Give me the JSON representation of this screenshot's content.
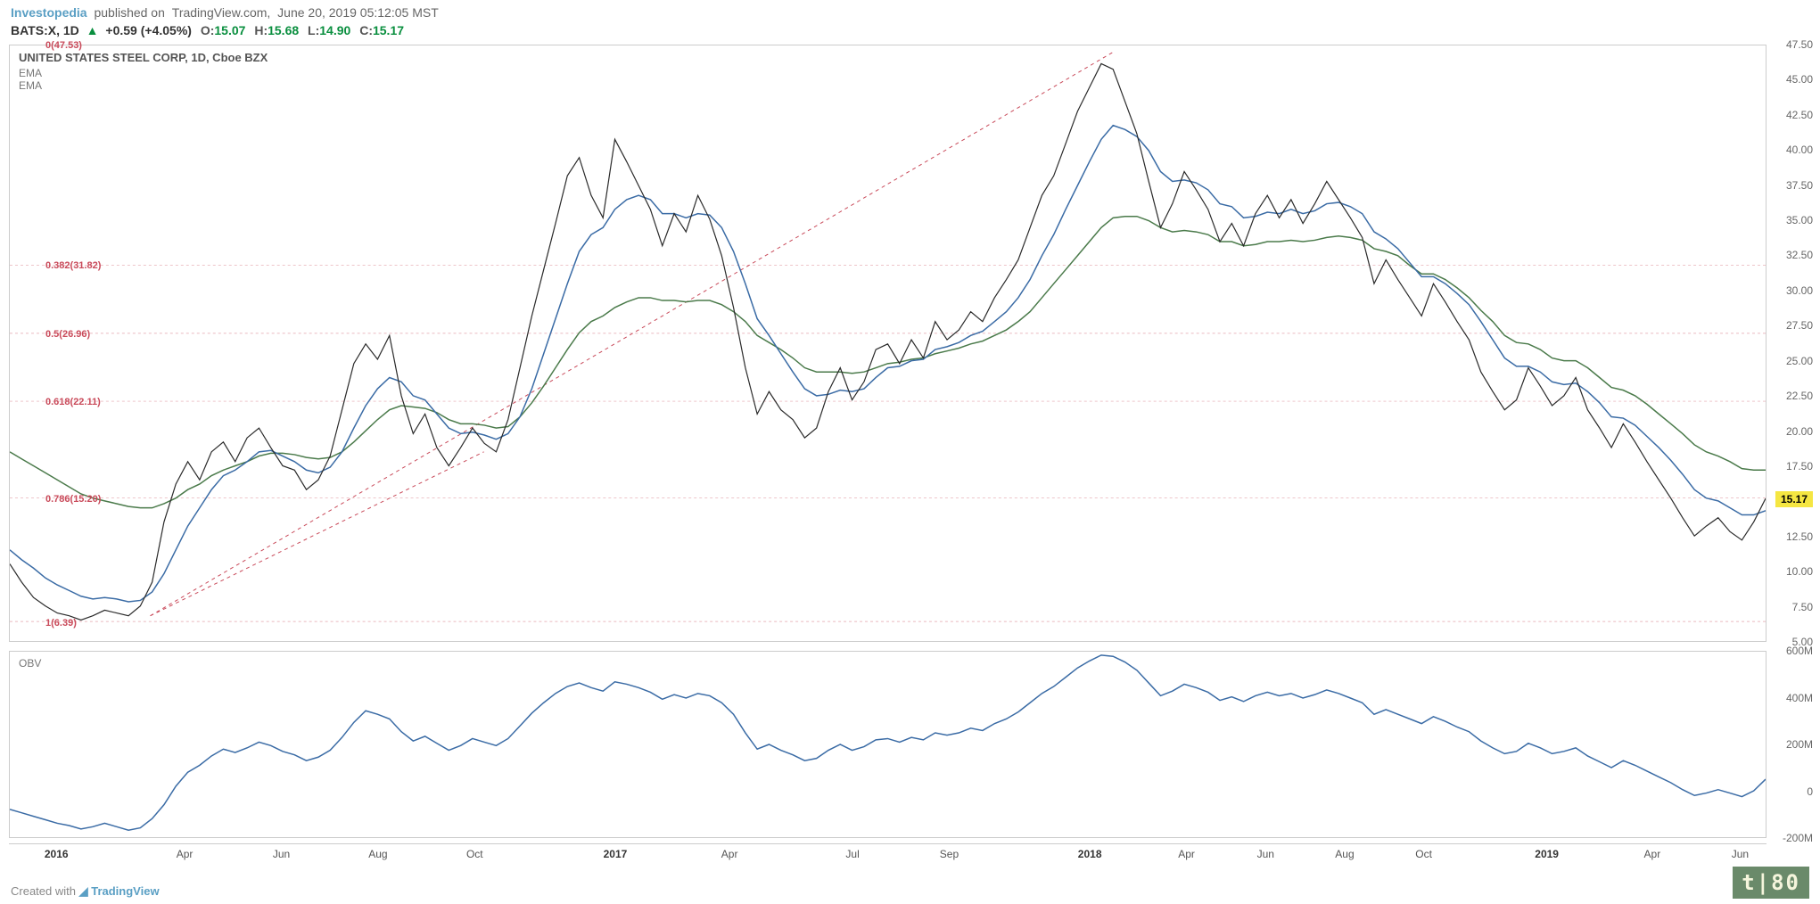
{
  "header": {
    "brand": "Investopedia",
    "published_prefix": "published on",
    "site": "TradingView.com,",
    "date": "June 20, 2019 05:12:05 MST"
  },
  "ohlc": {
    "symbol": "BATS:X",
    "timeframe": "1D",
    "arrow": "▲",
    "change": "+0.59",
    "pct": "(+4.05%)",
    "o_label": "O:",
    "o": "15.07",
    "h_label": "H:",
    "h": "15.68",
    "l_label": "L:",
    "l": "14.90",
    "c_label": "C:",
    "c": "15.17"
  },
  "main_chart": {
    "title": "UNITED STATES STEEL CORP, 1D, Cboe BZX",
    "ema1": "EMA",
    "ema2": "EMA",
    "ylim": [
      5.0,
      47.5
    ],
    "yticks": [
      "47.50",
      "45.00",
      "42.50",
      "40.00",
      "37.50",
      "35.00",
      "32.50",
      "30.00",
      "27.50",
      "25.00",
      "22.50",
      "20.00",
      "17.50",
      "15.00",
      "12.50",
      "10.00",
      "7.50",
      "5.00"
    ],
    "ytick_vals": [
      47.5,
      45,
      42.5,
      40,
      37.5,
      35,
      32.5,
      30,
      27.5,
      25,
      22.5,
      20,
      17.5,
      15,
      12.5,
      10,
      7.5,
      5
    ],
    "current_price": "15.17",
    "current_price_val": 15.17,
    "fib_levels": [
      {
        "label": "0(47.53)",
        "val": 47.53
      },
      {
        "label": "0.382(31.82)",
        "val": 31.82
      },
      {
        "label": "0.5(26.96)",
        "val": 26.96
      },
      {
        "label": "0.618(22.11)",
        "val": 22.11
      },
      {
        "label": "0.786(15.20)",
        "val": 15.2
      },
      {
        "label": "1(6.39)",
        "val": 6.39
      }
    ],
    "price": [
      10.5,
      9.2,
      8.1,
      7.5,
      7.0,
      6.8,
      6.5,
      6.8,
      7.2,
      7.0,
      6.8,
      7.5,
      9.2,
      13.5,
      16.2,
      17.8,
      16.5,
      18.5,
      19.2,
      17.8,
      19.5,
      20.2,
      18.8,
      17.5,
      17.2,
      15.8,
      16.5,
      18.2,
      21.5,
      24.8,
      26.2,
      25.1,
      26.8,
      22.5,
      19.8,
      21.2,
      18.8,
      17.5,
      18.8,
      20.2,
      19.1,
      18.5,
      20.8,
      24.5,
      28.2,
      31.5,
      34.8,
      38.2,
      39.5,
      36.8,
      35.2,
      40.8,
      39.2,
      37.5,
      35.8,
      33.2,
      35.5,
      34.2,
      36.8,
      35.1,
      32.5,
      28.8,
      24.5,
      21.2,
      22.8,
      21.5,
      20.8,
      19.5,
      20.2,
      22.8,
      24.5,
      22.2,
      23.5,
      25.8,
      26.2,
      24.8,
      26.5,
      25.2,
      27.8,
      26.5,
      27.2,
      28.5,
      27.8,
      29.5,
      30.8,
      32.2,
      34.5,
      36.8,
      38.2,
      40.5,
      42.8,
      44.5,
      46.2,
      45.8,
      43.5,
      41.2,
      37.8,
      34.5,
      36.2,
      38.5,
      37.2,
      35.8,
      33.5,
      34.8,
      33.2,
      35.5,
      36.8,
      35.2,
      36.5,
      34.8,
      36.2,
      37.8,
      36.5,
      35.2,
      33.8,
      30.5,
      32.2,
      30.8,
      29.5,
      28.2,
      30.5,
      29.2,
      27.8,
      26.5,
      24.2,
      22.8,
      21.5,
      22.2,
      24.5,
      23.2,
      21.8,
      22.5,
      23.8,
      21.5,
      20.2,
      18.8,
      20.5,
      19.2,
      17.8,
      16.5,
      15.2,
      13.8,
      12.5,
      13.2,
      13.8,
      12.8,
      12.2,
      13.5,
      15.17
    ],
    "ema_fast": [
      11.5,
      10.8,
      10.2,
      9.5,
      9.0,
      8.6,
      8.2,
      8.0,
      8.1,
      8.0,
      7.8,
      7.9,
      8.5,
      9.8,
      11.5,
      13.2,
      14.5,
      15.8,
      16.8,
      17.2,
      17.8,
      18.5,
      18.6,
      18.2,
      17.8,
      17.2,
      17.0,
      17.4,
      18.5,
      20.2,
      21.8,
      23.0,
      23.8,
      23.5,
      22.5,
      22.2,
      21.2,
      20.2,
      19.8,
      19.9,
      19.7,
      19.4,
      19.8,
      21.0,
      23.0,
      25.5,
      28.0,
      30.5,
      32.8,
      34.0,
      34.5,
      35.8,
      36.5,
      36.8,
      36.5,
      35.5,
      35.5,
      35.2,
      35.5,
      35.4,
      34.5,
      32.8,
      30.5,
      28.0,
      26.8,
      25.5,
      24.2,
      23.0,
      22.5,
      22.6,
      22.9,
      22.8,
      23.0,
      23.8,
      24.5,
      24.6,
      25.0,
      25.1,
      25.8,
      26.0,
      26.3,
      26.8,
      27.1,
      27.8,
      28.5,
      29.5,
      30.8,
      32.5,
      34.0,
      35.8,
      37.5,
      39.2,
      40.8,
      41.8,
      41.5,
      41.0,
      40.0,
      38.5,
      37.8,
      37.9,
      37.7,
      37.2,
      36.2,
      36.0,
      35.2,
      35.3,
      35.6,
      35.5,
      35.8,
      35.5,
      35.7,
      36.2,
      36.3,
      36.0,
      35.5,
      34.2,
      33.7,
      33.0,
      32.0,
      31.0,
      31.0,
      30.5,
      29.8,
      29.0,
      27.8,
      26.5,
      25.2,
      24.6,
      24.6,
      24.2,
      23.5,
      23.3,
      23.4,
      22.8,
      22.0,
      21.0,
      20.9,
      20.4,
      19.6,
      18.8,
      17.9,
      16.9,
      15.8,
      15.2,
      15.0,
      14.5,
      14.0,
      14.0,
      14.3
    ],
    "ema_slow": [
      18.5,
      18.0,
      17.5,
      17.0,
      16.5,
      16.0,
      15.5,
      15.2,
      15.0,
      14.8,
      14.6,
      14.5,
      14.5,
      14.8,
      15.2,
      15.8,
      16.2,
      16.8,
      17.2,
      17.5,
      17.8,
      18.2,
      18.4,
      18.4,
      18.3,
      18.1,
      18.0,
      18.1,
      18.5,
      19.2,
      20.0,
      20.8,
      21.5,
      21.8,
      21.7,
      21.6,
      21.3,
      20.8,
      20.5,
      20.5,
      20.4,
      20.2,
      20.3,
      21.0,
      22.0,
      23.2,
      24.5,
      25.8,
      27.0,
      27.8,
      28.2,
      28.8,
      29.2,
      29.5,
      29.5,
      29.3,
      29.3,
      29.2,
      29.3,
      29.3,
      29.0,
      28.5,
      27.8,
      26.8,
      26.3,
      25.8,
      25.2,
      24.5,
      24.2,
      24.2,
      24.2,
      24.1,
      24.2,
      24.5,
      24.8,
      24.9,
      25.1,
      25.2,
      25.5,
      25.7,
      25.9,
      26.2,
      26.4,
      26.8,
      27.2,
      27.8,
      28.5,
      29.5,
      30.5,
      31.5,
      32.5,
      33.5,
      34.5,
      35.2,
      35.3,
      35.3,
      35.0,
      34.5,
      34.2,
      34.3,
      34.2,
      34.0,
      33.5,
      33.5,
      33.2,
      33.3,
      33.5,
      33.5,
      33.6,
      33.5,
      33.6,
      33.8,
      33.9,
      33.8,
      33.6,
      33.0,
      32.8,
      32.5,
      31.8,
      31.2,
      31.2,
      30.8,
      30.2,
      29.5,
      28.6,
      27.8,
      26.8,
      26.3,
      26.2,
      25.8,
      25.2,
      25.0,
      25.0,
      24.5,
      23.8,
      23.1,
      22.9,
      22.5,
      21.9,
      21.2,
      20.5,
      19.8,
      19.0,
      18.5,
      18.2,
      17.8,
      17.3,
      17.2,
      17.2
    ]
  },
  "obv_chart": {
    "label": "OBV",
    "ylim": [
      -200,
      600
    ],
    "yticks": [
      "600M",
      "400M",
      "200M",
      "0",
      "-200M"
    ],
    "ytick_vals": [
      600,
      400,
      200,
      0,
      -200
    ],
    "data": [
      -80,
      -95,
      -110,
      -125,
      -140,
      -150,
      -165,
      -155,
      -140,
      -155,
      -170,
      -160,
      -120,
      -60,
      20,
      80,
      110,
      150,
      180,
      165,
      185,
      210,
      195,
      170,
      155,
      130,
      145,
      175,
      230,
      295,
      345,
      330,
      310,
      255,
      215,
      235,
      205,
      175,
      195,
      225,
      210,
      195,
      225,
      280,
      335,
      380,
      420,
      450,
      465,
      445,
      430,
      470,
      460,
      445,
      425,
      395,
      415,
      400,
      420,
      410,
      380,
      330,
      250,
      180,
      200,
      175,
      155,
      130,
      140,
      175,
      200,
      175,
      190,
      220,
      225,
      210,
      230,
      220,
      250,
      240,
      250,
      270,
      260,
      290,
      310,
      340,
      380,
      420,
      450,
      490,
      530,
      560,
      585,
      580,
      555,
      520,
      465,
      410,
      430,
      460,
      445,
      425,
      390,
      405,
      385,
      410,
      425,
      410,
      420,
      400,
      415,
      435,
      420,
      400,
      380,
      330,
      350,
      330,
      310,
      290,
      320,
      300,
      275,
      255,
      215,
      185,
      160,
      170,
      205,
      185,
      160,
      170,
      185,
      150,
      125,
      100,
      130,
      110,
      85,
      60,
      35,
      5,
      -20,
      -10,
      5,
      -10,
      -25,
      0,
      50
    ]
  },
  "x_axis": {
    "ticks": [
      {
        "label": "2016",
        "pos": 0.027,
        "bold": true
      },
      {
        "label": "Apr",
        "pos": 0.1,
        "bold": false
      },
      {
        "label": "Jun",
        "pos": 0.155,
        "bold": false
      },
      {
        "label": "Aug",
        "pos": 0.21,
        "bold": false
      },
      {
        "label": "Oct",
        "pos": 0.265,
        "bold": false
      },
      {
        "label": "2017",
        "pos": 0.345,
        "bold": true
      },
      {
        "label": "Apr",
        "pos": 0.41,
        "bold": false
      },
      {
        "label": "Jul",
        "pos": 0.48,
        "bold": false
      },
      {
        "label": "Sep",
        "pos": 0.535,
        "bold": false
      },
      {
        "label": "2018",
        "pos": 0.615,
        "bold": true
      },
      {
        "label": "Apr",
        "pos": 0.67,
        "bold": false
      },
      {
        "label": "Jun",
        "pos": 0.715,
        "bold": false
      },
      {
        "label": "Aug",
        "pos": 0.76,
        "bold": false
      },
      {
        "label": "Oct",
        "pos": 0.805,
        "bold": false
      },
      {
        "label": "2019",
        "pos": 0.875,
        "bold": true
      },
      {
        "label": "Apr",
        "pos": 0.935,
        "bold": false
      },
      {
        "label": "Jun",
        "pos": 0.985,
        "bold": false
      }
    ]
  },
  "footer": {
    "text": "Created with",
    "brand": "TradingView"
  },
  "watermark": {
    "text": "t|80"
  },
  "colors": {
    "brand": "#5a9fc4",
    "green": "#0a8f3f",
    "fib": "#c94a5a",
    "ema_blue": "#3a6ba5",
    "ema_green": "#4a7a4a",
    "highlight": "#f5e642"
  }
}
